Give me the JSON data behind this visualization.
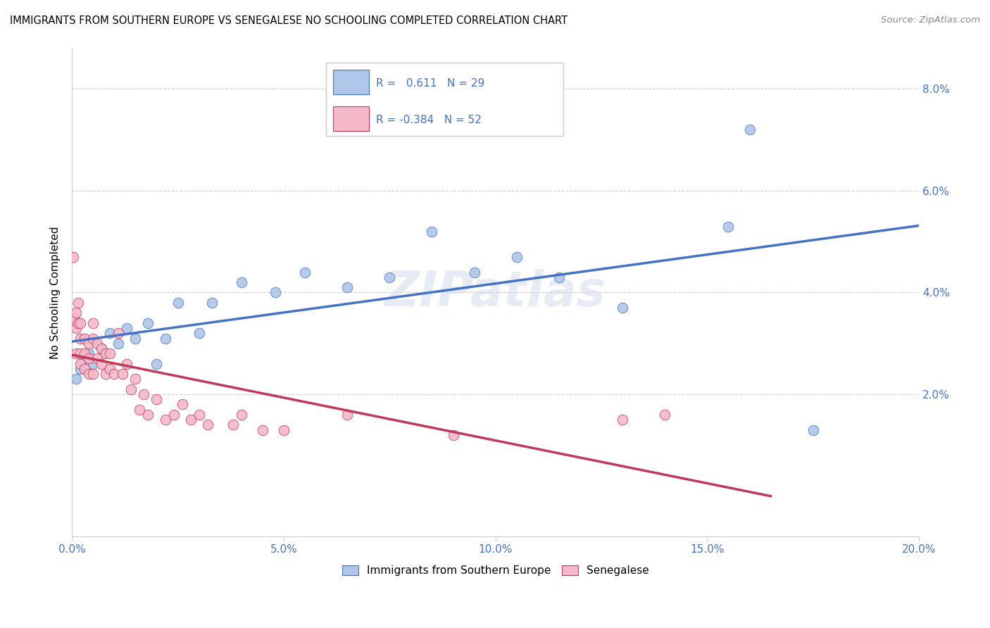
{
  "title": "IMMIGRANTS FROM SOUTHERN EUROPE VS SENEGALESE NO SCHOOLING COMPLETED CORRELATION CHART",
  "source": "Source: ZipAtlas.com",
  "ylabel": "No Schooling Completed",
  "yticks": [
    "8.0%",
    "6.0%",
    "4.0%",
    "2.0%"
  ],
  "ytick_vals": [
    0.08,
    0.06,
    0.04,
    0.02
  ],
  "xtick_vals": [
    0.0,
    0.05,
    0.1,
    0.15,
    0.2
  ],
  "xtick_labels": [
    "0.0%",
    "5.0%",
    "10.0%",
    "15.0%",
    "20.0%"
  ],
  "legend_label1": "Immigrants from Southern Europe",
  "legend_label2": "Senegalese",
  "r1": "0.611",
  "n1": "29",
  "r2": "-0.384",
  "n2": "52",
  "blue_color": "#aec6e8",
  "pink_color": "#f5b8c8",
  "line_blue": "#4472c4",
  "line_pink": "#c0385a",
  "text_color": "#4472c4",
  "watermark": "ZIPatlas",
  "xmax": 0.2,
  "ymax": 0.088,
  "ymin": -0.008,
  "blue_x": [
    0.001,
    0.002,
    0.003,
    0.004,
    0.005,
    0.007,
    0.009,
    0.011,
    0.013,
    0.015,
    0.018,
    0.02,
    0.022,
    0.025,
    0.03,
    0.033,
    0.04,
    0.048,
    0.055,
    0.065,
    0.075,
    0.085,
    0.095,
    0.105,
    0.115,
    0.13,
    0.155,
    0.16,
    0.175
  ],
  "blue_y": [
    0.023,
    0.025,
    0.027,
    0.028,
    0.026,
    0.029,
    0.032,
    0.03,
    0.033,
    0.031,
    0.034,
    0.026,
    0.031,
    0.038,
    0.032,
    0.038,
    0.042,
    0.04,
    0.044,
    0.041,
    0.043,
    0.052,
    0.044,
    0.047,
    0.043,
    0.037,
    0.053,
    0.072,
    0.013
  ],
  "pink_x": [
    0.0003,
    0.0005,
    0.001,
    0.001,
    0.001,
    0.0015,
    0.0015,
    0.002,
    0.002,
    0.002,
    0.002,
    0.003,
    0.003,
    0.003,
    0.004,
    0.004,
    0.004,
    0.005,
    0.005,
    0.005,
    0.006,
    0.006,
    0.007,
    0.007,
    0.008,
    0.008,
    0.009,
    0.009,
    0.01,
    0.011,
    0.012,
    0.013,
    0.014,
    0.015,
    0.016,
    0.017,
    0.018,
    0.02,
    0.022,
    0.024,
    0.026,
    0.028,
    0.03,
    0.032,
    0.038,
    0.04,
    0.045,
    0.05,
    0.065,
    0.09,
    0.13,
    0.14
  ],
  "pink_y": [
    0.047,
    0.035,
    0.028,
    0.033,
    0.036,
    0.034,
    0.038,
    0.028,
    0.031,
    0.034,
    0.026,
    0.025,
    0.028,
    0.031,
    0.024,
    0.027,
    0.03,
    0.031,
    0.034,
    0.024,
    0.027,
    0.03,
    0.026,
    0.029,
    0.024,
    0.028,
    0.025,
    0.028,
    0.024,
    0.032,
    0.024,
    0.026,
    0.021,
    0.023,
    0.017,
    0.02,
    0.016,
    0.019,
    0.015,
    0.016,
    0.018,
    0.015,
    0.016,
    0.014,
    0.014,
    0.016,
    0.013,
    0.013,
    0.016,
    0.012,
    0.015,
    0.016
  ]
}
